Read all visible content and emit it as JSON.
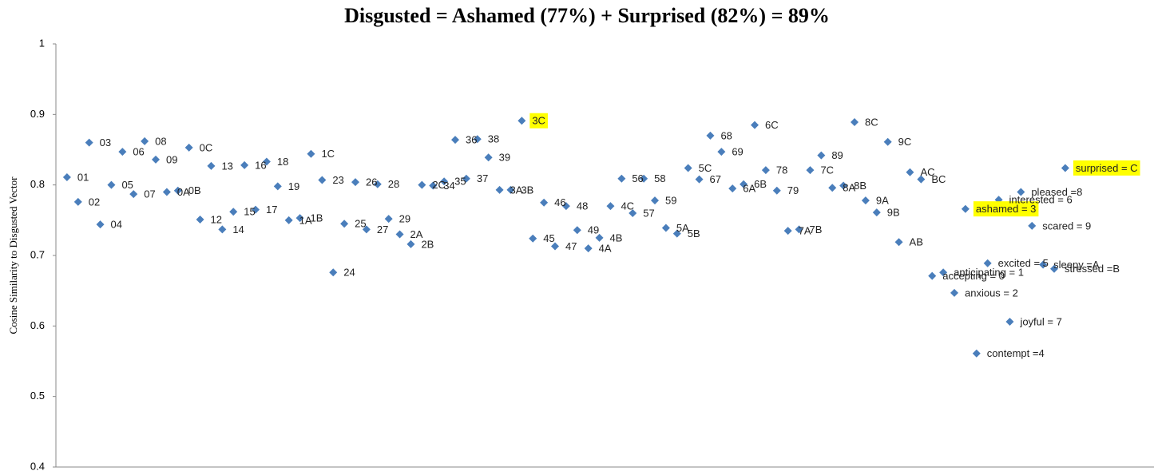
{
  "chart_data": {
    "type": "scatter",
    "title": "Disgusted = Ashamed (77%) + Surprised (82%) = 89%",
    "y_label": "Cosine Similarity to Disgusted Vector",
    "color": "#4a7ebb",
    "highlight_color": "#ffff00",
    "highlighted": [
      41,
      81,
      90
    ],
    "xlim": [
      0,
      99
    ],
    "ylim": [
      0.4,
      1
    ],
    "yticks": [
      0.4,
      0.5,
      0.6,
      0.7,
      0.8,
      0.9,
      1
    ],
    "x": [
      1,
      2,
      3,
      4,
      5,
      6,
      7,
      8,
      9,
      10,
      11,
      12,
      13,
      14,
      15,
      16,
      17,
      18,
      19,
      20,
      21,
      22,
      23,
      24,
      25,
      26,
      27,
      28,
      29,
      30,
      31,
      32,
      33,
      34,
      35,
      36,
      37,
      38,
      39,
      40,
      41,
      42,
      43,
      44,
      45,
      46,
      47,
      48,
      49,
      50,
      51,
      52,
      53,
      54,
      55,
      56,
      57,
      58,
      59,
      60,
      61,
      62,
      63,
      64,
      65,
      66,
      67,
      68,
      69,
      70,
      71,
      72,
      73,
      74,
      75,
      76,
      77,
      78,
      79,
      80,
      81,
      82,
      83,
      84,
      85,
      86,
      87,
      88,
      89,
      90,
      91
    ],
    "labels": [
      "01",
      "02",
      "03",
      "04",
      "05",
      "06",
      "07",
      "08",
      "09",
      "0A",
      "0B",
      "0C",
      "12",
      "13",
      "14",
      "15",
      "16",
      "17",
      "18",
      "19",
      "1A",
      "1B",
      "1C",
      "23",
      "24",
      "25",
      "26",
      "27",
      "28",
      "29",
      "2A",
      "2B",
      "2C",
      "34",
      "35",
      "36",
      "37",
      "38",
      "39",
      "3A",
      "3B",
      "3C",
      "45",
      "46",
      "47",
      "48",
      "49",
      "4A",
      "4B",
      "4C",
      "56",
      "57",
      "58",
      "59",
      "5A",
      "5B",
      "5C",
      "67",
      "68",
      "69",
      "6A",
      "6B",
      "6C",
      "78",
      "79",
      "7A",
      "7B",
      "7C",
      "89",
      "8A",
      "8B",
      "8C",
      "9A",
      "9B",
      "9C",
      "AB",
      "AC",
      "BC",
      "accepting = 0",
      "anticipating = 1",
      "anxious = 2",
      "ashamed = 3",
      "contempt =4",
      "excited = 5",
      "interested = 6",
      "joyful = 7",
      "pleased =8",
      "scared = 9",
      "sleepy =A",
      "stressed =B",
      "surprised = C"
    ],
    "values": [
      0.811,
      0.776,
      0.86,
      0.744,
      0.8,
      0.847,
      0.787,
      0.862,
      0.836,
      0.79,
      0.792,
      0.853,
      0.751,
      0.827,
      0.737,
      0.762,
      0.828,
      0.765,
      0.833,
      0.798,
      0.75,
      0.753,
      0.844,
      0.807,
      0.676,
      0.745,
      0.804,
      0.737,
      0.801,
      0.752,
      0.73,
      0.716,
      0.8,
      0.799,
      0.805,
      0.864,
      0.809,
      0.865,
      0.839,
      0.793,
      0.793,
      0.891,
      0.724,
      0.775,
      0.713,
      0.77,
      0.736,
      0.71,
      0.725,
      0.77,
      0.809,
      0.76,
      0.809,
      0.778,
      0.739,
      0.731,
      0.824,
      0.808,
      0.87,
      0.847,
      0.795,
      0.801,
      0.885,
      0.821,
      0.792,
      0.735,
      0.737,
      0.821,
      0.842,
      0.796,
      0.799,
      0.889,
      0.778,
      0.761,
      0.861,
      0.719,
      0.818,
      0.808,
      0.671,
      0.676,
      0.647,
      0.766,
      0.561,
      0.689,
      0.779,
      0.606,
      0.79,
      0.742,
      0.687,
      0.681,
      0.824
    ]
  }
}
